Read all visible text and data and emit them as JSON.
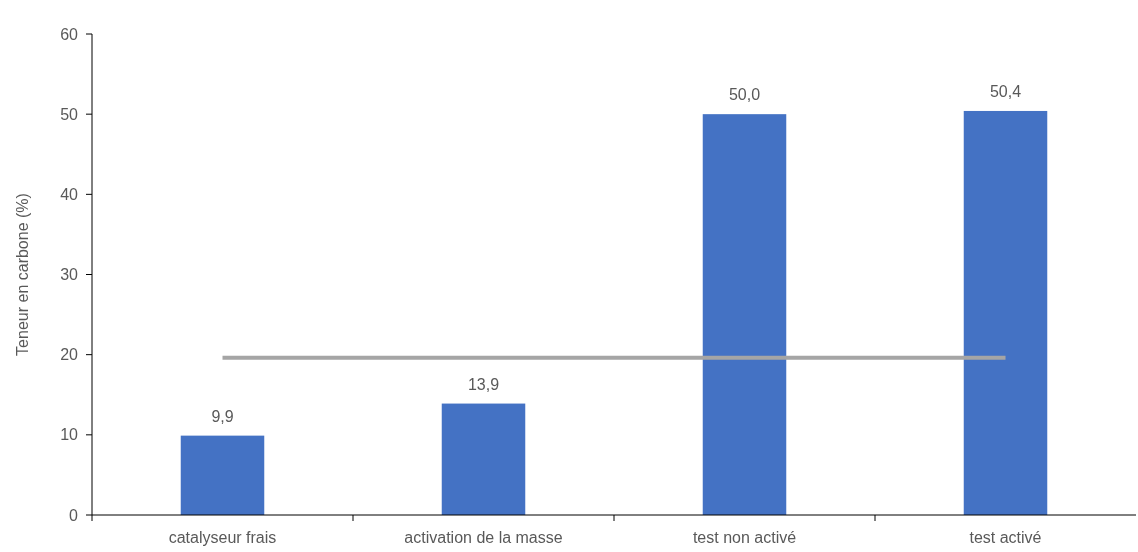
{
  "chart_data": {
    "type": "bar",
    "ylabel": "Teneur en carbone (%)",
    "categories": [
      "catalyseur frais",
      "activation de la masse",
      "test non activé",
      "test activé"
    ],
    "series": [
      {
        "color": "#4472c4",
        "values": [
          9.9,
          13.9,
          50.0,
          50.4
        ],
        "value_labels": [
          "9,9",
          "13,9",
          "50,0",
          "50,4"
        ]
      },
      {
        "type": "line",
        "color": "#a5a5a5",
        "values": [
          19.6,
          19.6,
          19.6,
          19.6
        ]
      }
    ],
    "ylim": [
      0,
      60
    ],
    "yticks": [
      0,
      10,
      20,
      30,
      40,
      50,
      60
    ],
    "grid": false,
    "marker": "none"
  }
}
